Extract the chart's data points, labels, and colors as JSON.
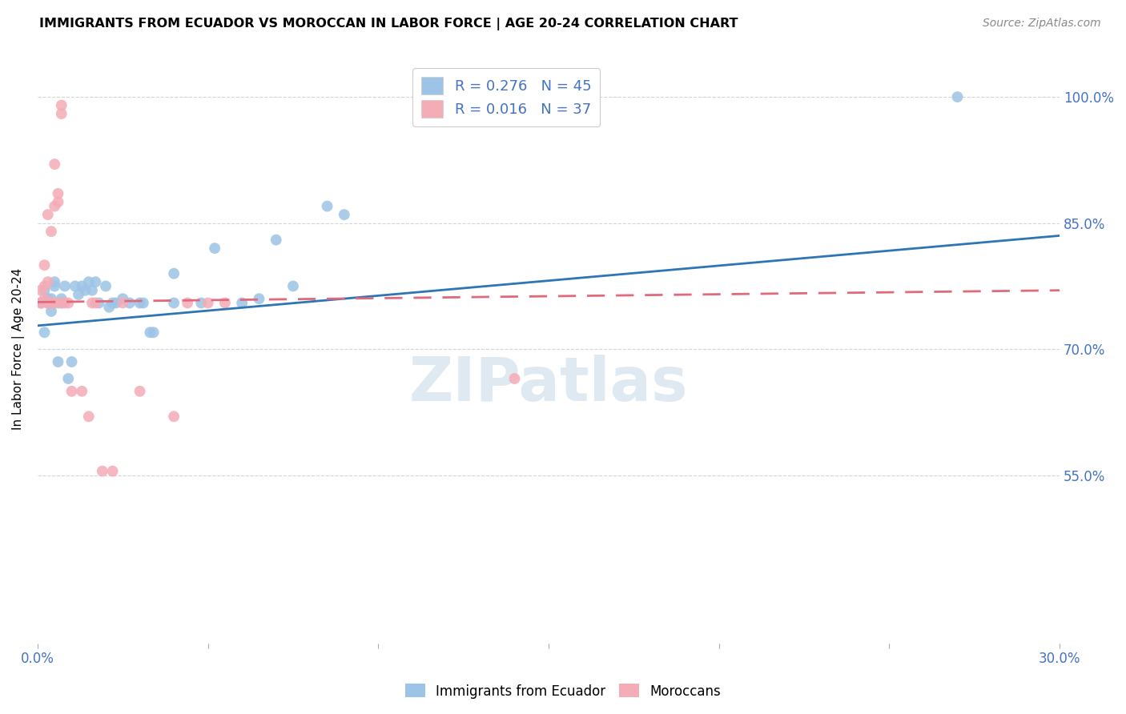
{
  "title": "IMMIGRANTS FROM ECUADOR VS MOROCCAN IN LABOR FORCE | AGE 20-24 CORRELATION CHART",
  "source": "Source: ZipAtlas.com",
  "xlabel": "",
  "ylabel": "In Labor Force | Age 20-24",
  "xlim": [
    0.0,
    0.3
  ],
  "ylim": [
    0.35,
    1.05
  ],
  "xticks": [
    0.0,
    0.05,
    0.1,
    0.15,
    0.2,
    0.25,
    0.3
  ],
  "xtick_labels": [
    "0.0%",
    "",
    "",
    "",
    "",
    "",
    "30.0%"
  ],
  "yticks": [
    0.55,
    0.7,
    0.85,
    1.0
  ],
  "ytick_labels": [
    "55.0%",
    "70.0%",
    "85.0%",
    "100.0%"
  ],
  "ecuador_color": "#9dc3e6",
  "morocco_color": "#f4acb7",
  "ecuador_line_color": "#2e75b6",
  "morocco_line_color": "#e06a7a",
  "legend_r_ecuador": "R = 0.276",
  "legend_n_ecuador": "N = 45",
  "legend_r_morocco": "R = 0.016",
  "legend_n_morocco": "N = 37",
  "ecuador_points": [
    [
      0.001,
      0.755
    ],
    [
      0.002,
      0.72
    ],
    [
      0.002,
      0.77
    ],
    [
      0.003,
      0.755
    ],
    [
      0.003,
      0.76
    ],
    [
      0.004,
      0.745
    ],
    [
      0.004,
      0.76
    ],
    [
      0.005,
      0.775
    ],
    [
      0.005,
      0.78
    ],
    [
      0.006,
      0.755
    ],
    [
      0.006,
      0.685
    ],
    [
      0.007,
      0.755
    ],
    [
      0.007,
      0.76
    ],
    [
      0.008,
      0.775
    ],
    [
      0.009,
      0.665
    ],
    [
      0.01,
      0.685
    ],
    [
      0.011,
      0.775
    ],
    [
      0.012,
      0.765
    ],
    [
      0.013,
      0.775
    ],
    [
      0.014,
      0.77
    ],
    [
      0.015,
      0.78
    ],
    [
      0.016,
      0.77
    ],
    [
      0.017,
      0.78
    ],
    [
      0.018,
      0.755
    ],
    [
      0.02,
      0.775
    ],
    [
      0.021,
      0.75
    ],
    [
      0.022,
      0.755
    ],
    [
      0.023,
      0.755
    ],
    [
      0.025,
      0.76
    ],
    [
      0.027,
      0.755
    ],
    [
      0.03,
      0.755
    ],
    [
      0.031,
      0.755
    ],
    [
      0.033,
      0.72
    ],
    [
      0.034,
      0.72
    ],
    [
      0.04,
      0.79
    ],
    [
      0.04,
      0.755
    ],
    [
      0.048,
      0.755
    ],
    [
      0.052,
      0.82
    ],
    [
      0.06,
      0.755
    ],
    [
      0.065,
      0.76
    ],
    [
      0.07,
      0.83
    ],
    [
      0.075,
      0.775
    ],
    [
      0.085,
      0.87
    ],
    [
      0.09,
      0.86
    ],
    [
      0.27,
      1.0
    ]
  ],
  "morocco_points": [
    [
      0.001,
      0.755
    ],
    [
      0.001,
      0.755
    ],
    [
      0.001,
      0.77
    ],
    [
      0.002,
      0.8
    ],
    [
      0.002,
      0.775
    ],
    [
      0.002,
      0.76
    ],
    [
      0.003,
      0.86
    ],
    [
      0.003,
      0.78
    ],
    [
      0.003,
      0.755
    ],
    [
      0.003,
      0.755
    ],
    [
      0.004,
      0.84
    ],
    [
      0.004,
      0.755
    ],
    [
      0.004,
      0.755
    ],
    [
      0.005,
      0.87
    ],
    [
      0.005,
      0.92
    ],
    [
      0.005,
      0.755
    ],
    [
      0.006,
      0.875
    ],
    [
      0.006,
      0.885
    ],
    [
      0.007,
      0.755
    ],
    [
      0.007,
      0.98
    ],
    [
      0.007,
      0.99
    ],
    [
      0.008,
      0.755
    ],
    [
      0.009,
      0.755
    ],
    [
      0.01,
      0.65
    ],
    [
      0.013,
      0.65
    ],
    [
      0.015,
      0.62
    ],
    [
      0.016,
      0.755
    ],
    [
      0.017,
      0.755
    ],
    [
      0.019,
      0.555
    ],
    [
      0.022,
      0.555
    ],
    [
      0.025,
      0.755
    ],
    [
      0.03,
      0.65
    ],
    [
      0.04,
      0.62
    ],
    [
      0.044,
      0.755
    ],
    [
      0.05,
      0.755
    ],
    [
      0.055,
      0.755
    ],
    [
      0.14,
      0.665
    ]
  ]
}
